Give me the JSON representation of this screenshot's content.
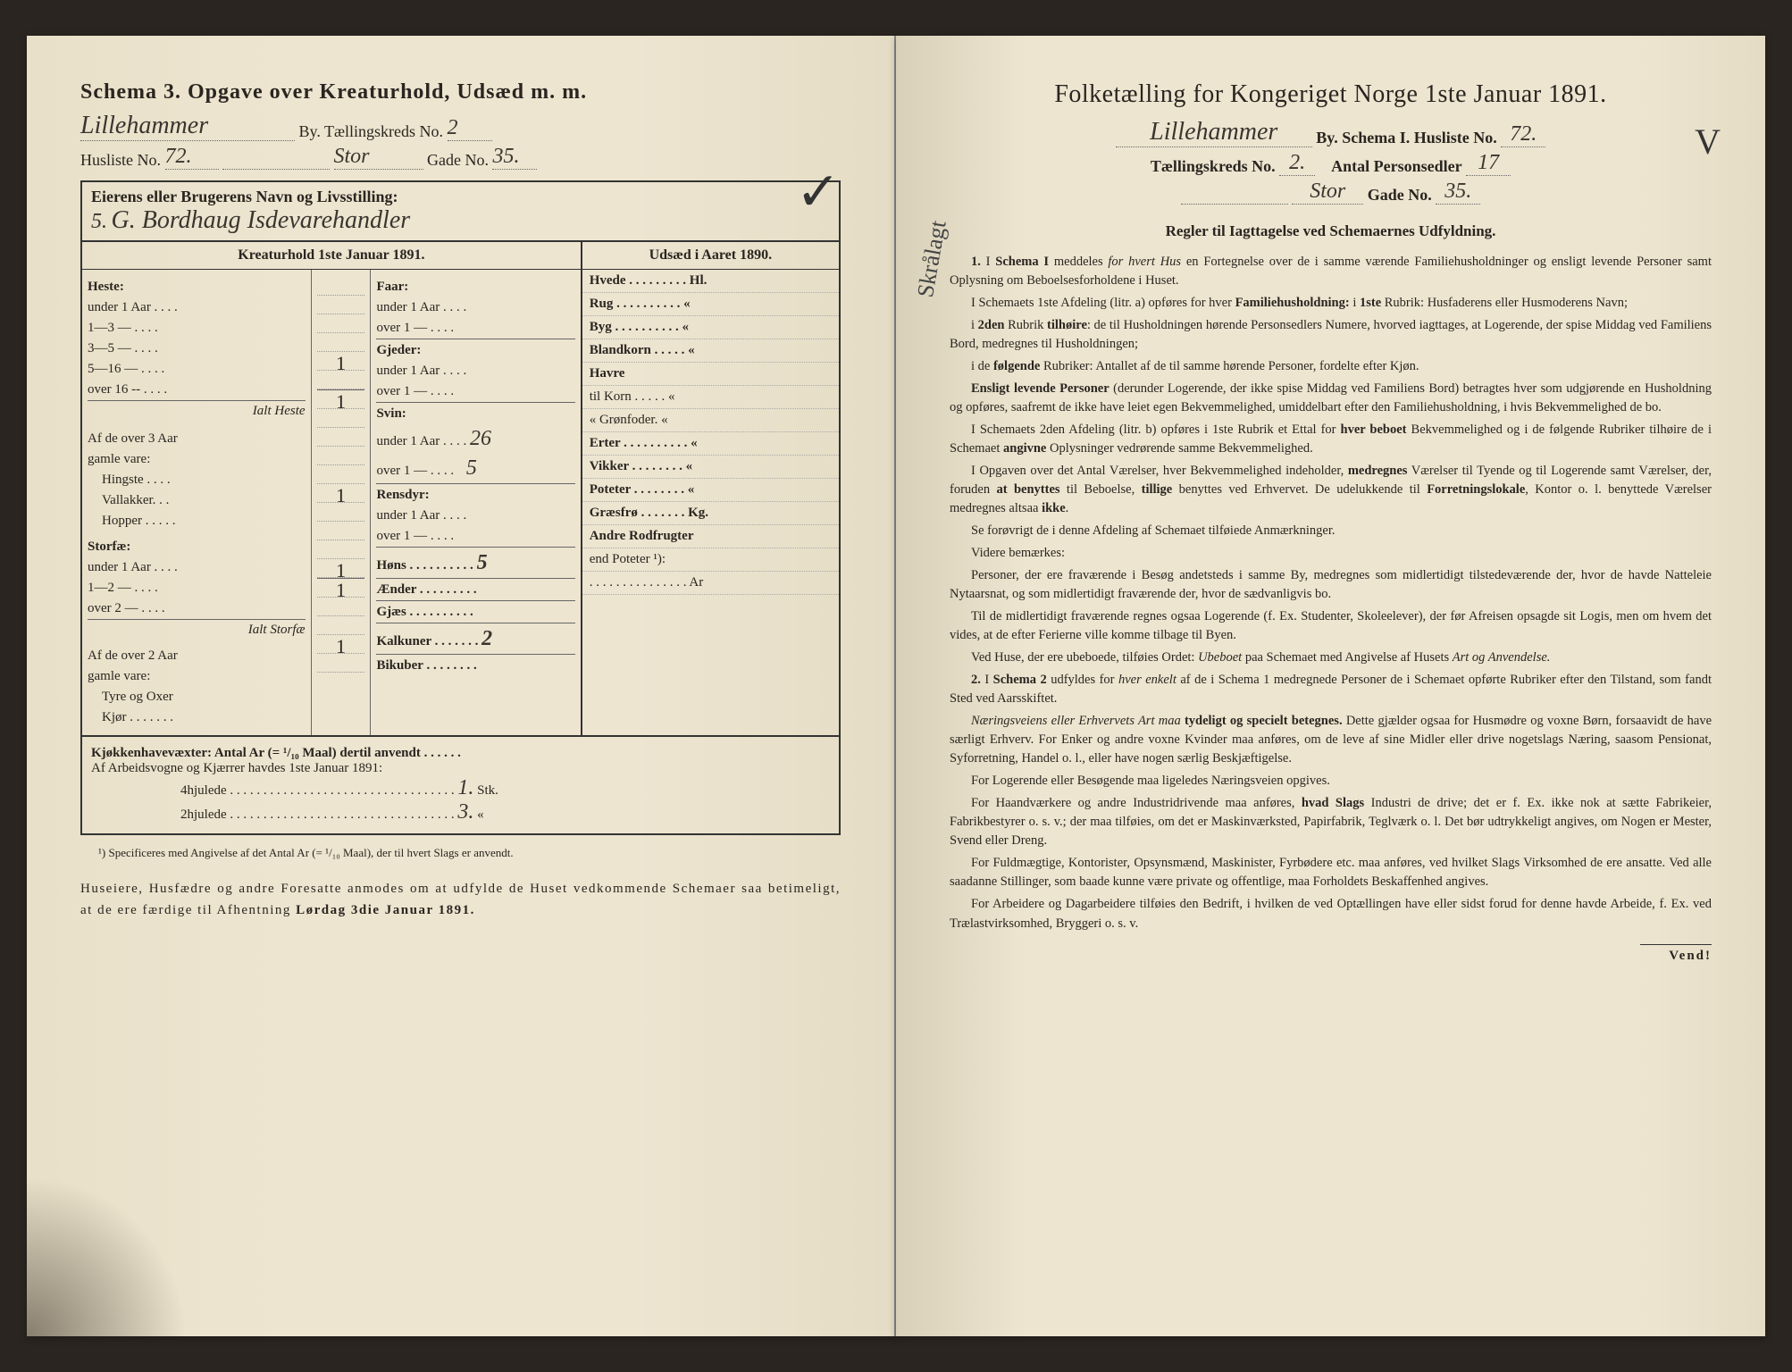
{
  "leftPage": {
    "header": "Schema 3.  Opgave over Kreaturhold, Udsæd m. m.",
    "city_handwritten": "Lillehammer",
    "by_label": "By.  Tællingskreds No.",
    "tk_no": "2",
    "husliste_label": "Husliste No.",
    "husliste_no": "72.",
    "gade_handwritten": "Stor",
    "gade_label": "Gade No.",
    "gade_no": "35.",
    "owner_label": "Eierens eller Brugerens Navn og Livsstilling:",
    "owner_handwritten_prefix": "5.",
    "owner_handwritten": "G. Bordhaug   Isdevarehandler",
    "checkmark": "✓",
    "kreatur_header": "Kreaturhold 1ste Januar 1891.",
    "udsaed_header": "Udsæd i Aaret 1890.",
    "col1": {
      "heste_label": "Heste:",
      "heste_rows": [
        "under 1 Aar . . . .",
        "1—3   —  . . . .",
        "3—5   —  . . . .",
        "5—16  —   . . . .",
        "over 16 --   . . . ."
      ],
      "heste_vals": [
        "",
        "",
        "",
        "1",
        ""
      ],
      "ialt_heste": "Ialt Heste",
      "ialt_heste_val": "1",
      "af3aar": "Af de over 3 Aar",
      "gamle_vare": "gamle vare:",
      "hingste": "Hingste . . . .",
      "vallakker": "Vallakker. . .",
      "hopper": "Hopper . . . . .",
      "hopper_val": "1",
      "storfae_label": "Storfæ:",
      "storfae_rows": [
        "under 1 Aar . . . .",
        "1—2  —  . . . .",
        "over 2   —  . . . ."
      ],
      "storfae_vals": [
        "",
        "",
        "1"
      ],
      "ialt_storfae": "Ialt Storfæ",
      "ialt_storfae_val": "1",
      "af2aar": "Af de over 2 Aar",
      "tyre": "Tyre og Oxer",
      "tyre_val": "1",
      "kjor": "Kjør . . . . . . ."
    },
    "col2": {
      "faar_label": "Faar:",
      "faar_rows": [
        "under 1 Aar . . . .",
        "over 1   —  . . . ."
      ],
      "gjeder_label": "Gjeder:",
      "gjeder_rows": [
        "under 1 Aar . . . .",
        "over 1   —  . . . ."
      ],
      "svin_label": "Svin:",
      "svin_rows": [
        "under 1 Aar . . . .",
        "over 1   —  . . . ."
      ],
      "svin_vals": [
        "26",
        "5"
      ],
      "rensdyr_label": "Rensdyr:",
      "rensdyr_rows": [
        "under 1 Aar . . . .",
        "over 1   —  . . . ."
      ],
      "hons": "Høns . . . . . . . . . .",
      "hons_val": "5",
      "aender": "Ænder . . . . . . . . .",
      "gjaes": "Gjæs . . . . . . . . . .",
      "kalkuner": "Kalkuner . . . . . . .",
      "kalkuner_val": "2",
      "bikuber": "Bikuber . . . . . . . ."
    },
    "col3": {
      "rows": [
        {
          "label": "Hvede . . . . . . . . . Hl.",
          "bold": true
        },
        {
          "label": "Rug . . . . . . . . . .   «",
          "bold": true
        },
        {
          "label": "Byg . . . . . . . . . .   «",
          "bold": true
        },
        {
          "label": "Blandkorn . . . . .   «",
          "bold": true
        },
        {
          "label": "Havre",
          "bold": true
        },
        {
          "label": "   til Korn . . . . .   «",
          "bold": false
        },
        {
          "label": "   « Grønfoder.   «",
          "bold": false
        },
        {
          "label": "Erter . . . . . . . . . .   «",
          "bold": true
        },
        {
          "label": "Vikker . . . . . . . .   «",
          "bold": true
        },
        {
          "label": "Poteter . . . . . . . .   «",
          "bold": true
        },
        {
          "label": "Græsfrø . . . . . . . Kg.",
          "bold": true
        },
        {
          "label": "Andre Rodfrugter",
          "bold": true
        },
        {
          "label": "   end Poteter ¹):",
          "bold": false
        },
        {
          "label": ". . . . . . . . . . . . . . . Ar",
          "bold": false
        }
      ]
    },
    "bottom": {
      "kjokken": "Kjøkkenhavevæxter:   Antal Ar (= ¹/₁₀ Maal) dertil anvendt . . . . . .",
      "arbeid": "Af Arbeidsvogne og Kjærrer havdes 1ste Januar 1891:",
      "fourhjul": "4hjulede . . . . . . . . . . . . . . . . . . . . . . . . . . . . . . . . . .",
      "fourhjul_val": "1.",
      "stk": "Stk.",
      "twohjul": "2hjulede . . . . . . . . . . . . . . . . . . . . . . . . . . . . . . . . . .",
      "twohjul_val": "3.",
      "quote": "«"
    },
    "footnote": "¹) Specificeres med Angivelse af det Antal Ar (= ¹/₁₀ Maal), der til hvert Slags er anvendt.",
    "notice": "Huseiere, Husfædre og andre Foresatte anmodes om at udfylde de Huset vedkommende Schemaer saa betimeligt, at de ere færdige til Afhentning Lørdag 3die Januar 1891."
  },
  "rightPage": {
    "header": "Folketælling for Kongeriget Norge 1ste Januar 1891.",
    "city_handwritten": "Lillehammer",
    "by_label": "By.   Schema I.   Husliste No.",
    "husliste_no": "72.",
    "tk_label": "Tællingskreds No.",
    "tk_no": "2.",
    "antal_label": "Antal Personsedler",
    "antal_no": "17",
    "gade_handwritten": "Stor",
    "gade_label": "Gade No.",
    "gade_no": "35.",
    "side_note": "Skrålagt",
    "checkmark_v": "V",
    "rules_header": "Regler til Iagttagelse ved Schemaernes Udfyldning.",
    "rules": [
      {
        "n": "1.",
        "t": "I <strong>Schema I</strong> meddeles <em>for hvert Hus</em> en Fortegnelse over de i samme værende Familiehusholdninger og ensligt levende Personer samt Oplysning om Beboelsesforholdene i Huset."
      },
      {
        "t": "I Schemaets 1ste Afdeling (litr. a) opføres for hver <strong>Familiehusholdning:</strong> i <strong>1ste</strong> Rubrik: Husfaderens eller Husmoderens Navn;"
      },
      {
        "t": "i <strong>2den</strong> Rubrik <strong>tilhøire</strong>: de til Husholdningen hørende Personsedlers Numere, hvorved iagttages, at Logerende, der spise Middag ved Familiens Bord, medregnes til Husholdningen;"
      },
      {
        "t": "i de <strong>følgende</strong> Rubriker: Antallet af de til samme hørende Personer, fordelte efter Kjøn."
      },
      {
        "t": "<strong>Ensligt levende Personer</strong> (derunder Logerende, der ikke spise Middag ved Familiens Bord) betragtes hver som udgjørende en Husholdning og opføres, saafremt de ikke have leiet egen Bekvemmelighed, umiddelbart efter den Familiehusholdning, i hvis Bekvemmelighed de bo."
      },
      {
        "t": "I Schemaets 2den Afdeling (litr. b) opføres i 1ste Rubrik et Ettal for <strong>hver beboet</strong> Bekvemmelighed og i de følgende Rubriker tilhøire de i Schemaet <strong>angivne</strong> Oplysninger vedrørende samme Bekvemmelighed."
      },
      {
        "t": "I Opgaven over det Antal Værelser, hver Bekvemmelighed indeholder, <strong>medregnes</strong> Værelser til Tyende og til Logerende samt Værelser, der, foruden <strong>at benyttes</strong> til Beboelse, <strong>tillige</strong> benyttes ved Erhvervet. De udelukkende til <strong>Forretningslokale</strong>, Kontor o. l. benyttede Værelser medregnes altsaa <strong>ikke</strong>."
      },
      {
        "t": "Se forøvrigt de i denne Afdeling af Schemaet tilføiede Anmærkninger."
      },
      {
        "t": "Videre bemærkes:"
      },
      {
        "t": "Personer, der ere fraværende i Besøg andetsteds i samme By, medregnes som midlertidigt tilstedeværende der, hvor de havde Natteleie Nytaarsnat, og som midlertidigt fraværende der, hvor de sædvanligvis bo."
      },
      {
        "t": "Til de midlertidigt fraværende regnes ogsaa Logerende (f. Ex. Studenter, Skoleelever), der før Afreisen opsagde sit Logis, men om hvem det vides, at de efter Ferierne ville komme tilbage til Byen."
      },
      {
        "t": "Ved Huse, der ere ubeboede, tilføies Ordet: <em>Ubeboet</em> paa Schemaet med Angivelse af Husets <em>Art og Anvendelse.</em>"
      },
      {
        "n": "2.",
        "t": "I <strong>Schema 2</strong> udfyldes for <em>hver enkelt</em> af de i Schema 1 medregnede Personer de i Schemaet opførte Rubriker efter den Tilstand, som fandt Sted ved Aarsskiftet."
      },
      {
        "t": "<em>Næringsveiens eller Erhvervets Art maa</em> <strong>tydeligt og specielt betegnes.</strong> Dette gjælder ogsaa for Husmødre og voxne Børn, forsaavidt de have særligt Erhverv. For Enker og andre voxne Kvinder maa anføres, om de leve af sine Midler eller drive nogetslags Næring, saasom Pensionat, Syforretning, Handel o. l., eller have nogen særlig Beskjæftigelse."
      },
      {
        "t": "For Logerende eller Besøgende maa ligeledes Næringsveien opgives."
      },
      {
        "t": "For Haandværkere og andre Industridrivende maa anføres, <strong>hvad Slags</strong> Industri de drive; det er f. Ex. ikke nok at sætte Fabrikeier, Fabrikbestyrer o. s. v.; der maa tilføies, om det er Maskinværksted, Papirfabrik, Teglværk o. l. Det bør udtrykkeligt angives, om Nogen er Mester, Svend eller Dreng."
      },
      {
        "t": "For Fuldmægtige, Kontorister, Opsynsmænd, Maskinister, Fyrbødere etc. maa anføres, ved hvilket Slags Virksomhed de ere ansatte. Ved alle saadanne Stillinger, som baade kunne være private og offentlige, maa Forholdets Beskaffenhed angives."
      },
      {
        "t": "For Arbeidere og Dagarbeidere tilføies den Bedrift, i hvilken de ved Optællingen have eller sidst forud for denne havde Arbeide, f. Ex. ved Trælastvirksomhed, Bryggeri o. s. v."
      }
    ],
    "vend": "Vend!"
  }
}
